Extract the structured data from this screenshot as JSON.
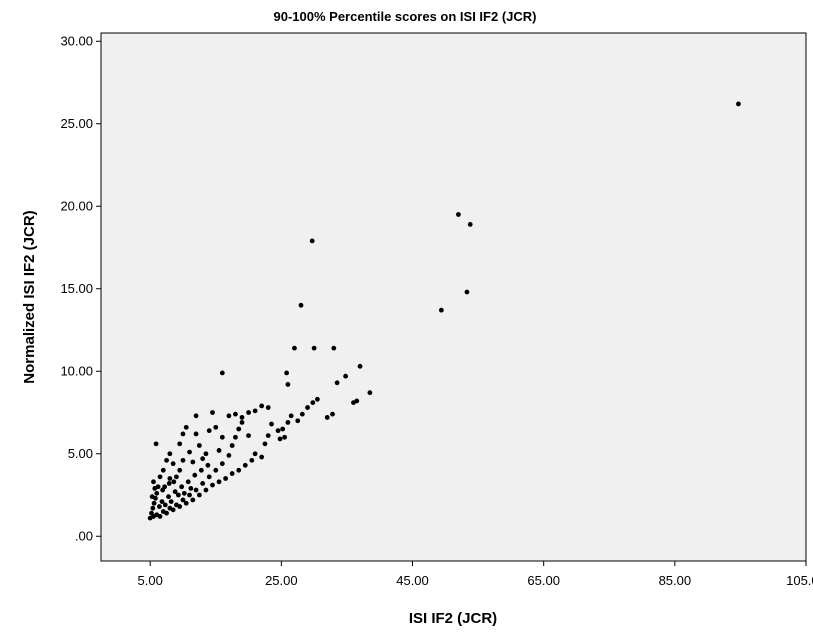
{
  "chart_data": {
    "type": "scatter",
    "title": "90-100% Percentile scores on ISI IF2 (JCR)",
    "xlabel": "ISI IF2 (JCR)",
    "ylabel": "Normalized ISI IF2 (JCR)",
    "xlim": [
      -2.5,
      105
    ],
    "ylim": [
      -1.5,
      30.5
    ],
    "xticks": [
      5,
      25,
      45,
      65,
      85,
      105
    ],
    "xtick_labels": [
      "5.00",
      "25.00",
      "45.00",
      "65.00",
      "85.00",
      "105.00"
    ],
    "yticks": [
      0,
      5,
      10,
      15,
      20,
      25,
      30
    ],
    "ytick_labels": [
      ".00",
      "5.00",
      "10.00",
      "15.00",
      "20.00",
      "25.00",
      "30.00"
    ],
    "grid": false,
    "legend": "none",
    "colors": {
      "plot_background": "#f0f0f0",
      "point": "#000000",
      "frame": "#000000"
    },
    "points": [
      [
        94.7,
        26.2
      ],
      [
        52.0,
        19.5
      ],
      [
        53.8,
        18.9
      ],
      [
        53.3,
        14.8
      ],
      [
        49.4,
        13.7
      ],
      [
        29.7,
        17.9
      ],
      [
        28.0,
        14.0
      ],
      [
        27.0,
        11.4
      ],
      [
        30.0,
        11.4
      ],
      [
        33.0,
        11.4
      ],
      [
        25.8,
        9.9
      ],
      [
        26.0,
        9.2
      ],
      [
        16.0,
        9.9
      ],
      [
        37.0,
        10.3
      ],
      [
        34.8,
        9.7
      ],
      [
        33.5,
        9.3
      ],
      [
        38.5,
        8.7
      ],
      [
        36.5,
        8.2
      ],
      [
        36.0,
        8.1
      ],
      [
        32.8,
        7.4
      ],
      [
        32.0,
        7.2
      ],
      [
        30.5,
        8.3
      ],
      [
        29.8,
        8.1
      ],
      [
        29.0,
        7.8
      ],
      [
        28.2,
        7.4
      ],
      [
        27.5,
        7.0
      ],
      [
        26.5,
        7.3
      ],
      [
        26.0,
        6.9
      ],
      [
        25.2,
        6.5
      ],
      [
        24.5,
        6.4
      ],
      [
        23.5,
        6.8
      ],
      [
        22.0,
        7.9
      ],
      [
        23.0,
        7.8
      ],
      [
        21.0,
        7.6
      ],
      [
        20.0,
        7.5
      ],
      [
        19.0,
        6.9
      ],
      [
        18.5,
        6.5
      ],
      [
        18.0,
        6.0
      ],
      [
        17.5,
        5.5
      ],
      [
        17.0,
        4.9
      ],
      [
        16.0,
        4.4
      ],
      [
        15.0,
        4.0
      ],
      [
        14.0,
        3.6
      ],
      [
        13.0,
        3.2
      ],
      [
        12.0,
        2.8
      ],
      [
        11.0,
        2.5
      ],
      [
        10.0,
        2.2
      ],
      [
        9.0,
        1.9
      ],
      [
        8.0,
        1.7
      ],
      [
        7.0,
        1.5
      ],
      [
        6.0,
        1.3
      ],
      [
        5.0,
        1.1
      ],
      [
        5.2,
        1.4
      ],
      [
        5.4,
        1.7
      ],
      [
        5.6,
        2.0
      ],
      [
        5.8,
        2.3
      ],
      [
        6.0,
        2.6
      ],
      [
        6.2,
        3.0
      ],
      [
        5.5,
        3.3
      ],
      [
        6.5,
        3.6
      ],
      [
        5.9,
        5.6
      ],
      [
        7.2,
        3.0
      ],
      [
        7.0,
        4.0
      ],
      [
        7.5,
        4.6
      ],
      [
        8.0,
        5.0
      ],
      [
        8.5,
        4.4
      ],
      [
        8.0,
        3.5
      ],
      [
        9.0,
        3.6
      ],
      [
        9.5,
        4.0
      ],
      [
        10.0,
        4.6
      ],
      [
        10.0,
        6.2
      ],
      [
        10.5,
        6.6
      ],
      [
        9.5,
        5.6
      ],
      [
        11.0,
        5.1
      ],
      [
        11.5,
        4.5
      ],
      [
        12.0,
        7.3
      ],
      [
        12.0,
        6.2
      ],
      [
        12.5,
        5.5
      ],
      [
        13.0,
        4.7
      ],
      [
        13.5,
        5.0
      ],
      [
        14.5,
        7.5
      ],
      [
        14.0,
        6.4
      ],
      [
        15.0,
        6.6
      ],
      [
        15.5,
        5.2
      ],
      [
        16.0,
        6.0
      ],
      [
        17.0,
        7.3
      ],
      [
        18.0,
        7.4
      ],
      [
        19.0,
        7.2
      ],
      [
        20.0,
        6.1
      ],
      [
        21.0,
        5.0
      ],
      [
        22.0,
        4.8
      ],
      [
        20.5,
        4.6
      ],
      [
        19.5,
        4.3
      ],
      [
        18.5,
        4.0
      ],
      [
        17.5,
        3.8
      ],
      [
        16.5,
        3.5
      ],
      [
        15.5,
        3.3
      ],
      [
        14.5,
        3.1
      ],
      [
        13.5,
        2.8
      ],
      [
        12.5,
        2.5
      ],
      [
        11.5,
        2.2
      ],
      [
        10.5,
        2.0
      ],
      [
        9.5,
        1.8
      ],
      [
        8.5,
        1.6
      ],
      [
        7.5,
        1.4
      ],
      [
        6.5,
        1.2
      ],
      [
        5.5,
        1.2
      ],
      [
        5.3,
        2.4
      ],
      [
        6.8,
        2.1
      ],
      [
        7.8,
        2.4
      ],
      [
        8.8,
        2.7
      ],
      [
        9.8,
        3.0
      ],
      [
        10.8,
        3.3
      ],
      [
        11.8,
        3.7
      ],
      [
        12.8,
        4.0
      ],
      [
        13.8,
        4.3
      ],
      [
        6.4,
        1.8
      ],
      [
        7.3,
        1.9
      ],
      [
        8.2,
        2.1
      ],
      [
        6.9,
        2.8
      ],
      [
        5.7,
        2.9
      ],
      [
        7.9,
        3.2
      ],
      [
        8.6,
        3.3
      ],
      [
        9.3,
        2.5
      ],
      [
        10.2,
        2.6
      ],
      [
        11.2,
        2.9
      ],
      [
        24.8,
        5.9
      ],
      [
        25.5,
        6.0
      ],
      [
        23.0,
        6.1
      ],
      [
        22.5,
        5.6
      ]
    ]
  }
}
